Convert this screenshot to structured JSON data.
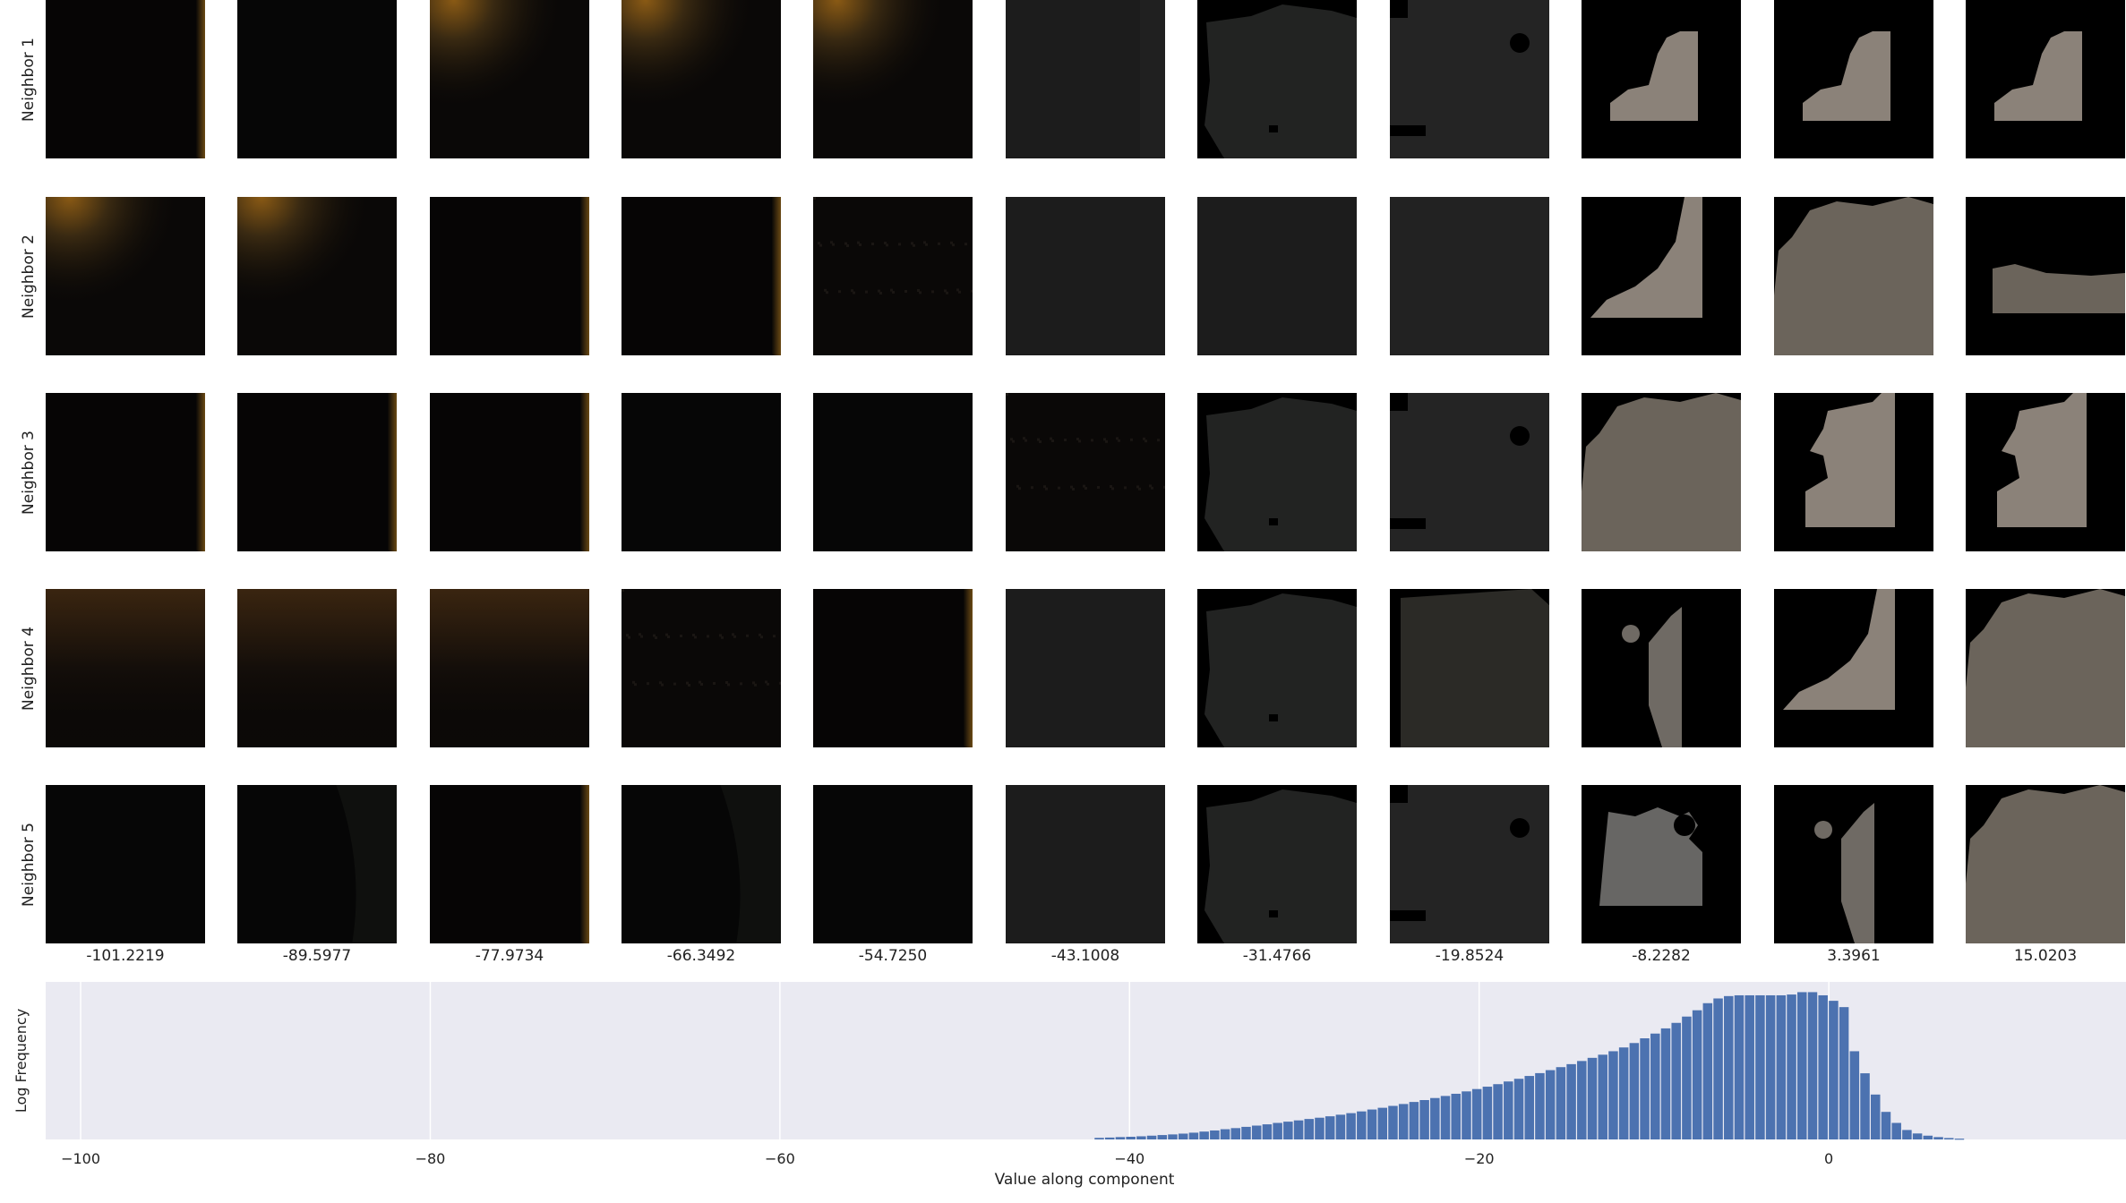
{
  "row_labels": [
    "Neighbor 1",
    "Neighbor 2",
    "Neighbor 3",
    "Neighbor 4",
    "Neighbor 5"
  ],
  "column_values": [
    "-101.2219",
    "-89.5977",
    "-77.9734",
    "-66.3492",
    "-54.7250",
    "-43.1008",
    "-31.4766",
    "-19.8524",
    "-8.2282",
    "3.3961",
    "15.0203"
  ],
  "tiles": [
    [
      "dark-edge",
      "dark",
      "amber-corner",
      "amber-corner",
      "amber-corner",
      "charcoal-edge",
      "blob-dark",
      "blob-dark-holes",
      "mask-corner",
      "mask-corner",
      "mask-corner"
    ],
    [
      "amber-corner",
      "amber-corner",
      "dark-edge",
      "dark-edge",
      "dark-speckle",
      "charcoal",
      "charcoal",
      "charcoal-light",
      "mask-diagonal",
      "mask-large",
      "mask-band"
    ],
    [
      "dark-edge",
      "dark-edge",
      "dark-edge",
      "dark",
      "dark",
      "dark-speckle",
      "blob-dark",
      "blob-dark-holes",
      "mask-large",
      "mask-notch",
      "mask-notch"
    ],
    [
      "brown-gradient",
      "brown-gradient",
      "brown-gradient",
      "dark-speckle",
      "dark-edge",
      "charcoal",
      "blob-dark",
      "blob-olive",
      "mask-arc",
      "mask-diagonal",
      "mask-large"
    ],
    [
      "dark",
      "dark-shadow",
      "dark-edge",
      "dark-shadow",
      "dark",
      "charcoal",
      "blob-dark",
      "blob-dark-holes",
      "mask-holes",
      "mask-arc",
      "mask-large"
    ]
  ],
  "colors": {
    "plot_background": "#eaeaf2",
    "bar": "#4c72b0",
    "grid": "#ffffff",
    "mask_light": "#8b8279",
    "mask_mid": "#6b645b",
    "tile_dark": "#050505"
  },
  "chart_data": {
    "type": "bar",
    "ylabel": "Log Frequency",
    "xlabel": "Value along component",
    "xlim": [
      -102,
      17
    ],
    "xticks": [
      -100,
      -80,
      -60,
      -40,
      -20,
      0
    ],
    "xtick_labels": [
      "−100",
      "−80",
      "−60",
      "−40",
      "−20",
      "0"
    ],
    "y_scale": "log",
    "grid": true,
    "bin_width": 0.6,
    "x": [
      -41.7,
      -41.1,
      -40.5,
      -39.9,
      -39.3,
      -38.7,
      -38.1,
      -37.5,
      -36.9,
      -36.3,
      -35.7,
      -35.1,
      -34.5,
      -33.9,
      -33.3,
      -32.7,
      -32.1,
      -31.5,
      -30.9,
      -30.3,
      -29.7,
      -29.1,
      -28.5,
      -27.9,
      -27.3,
      -26.7,
      -26.1,
      -25.5,
      -24.9,
      -24.3,
      -23.7,
      -23.1,
      -22.5,
      -21.9,
      -21.3,
      -20.7,
      -20.1,
      -19.5,
      -18.9,
      -18.3,
      -17.7,
      -17.1,
      -16.5,
      -15.9,
      -15.3,
      -14.7,
      -14.1,
      -13.5,
      -12.9,
      -12.3,
      -11.7,
      -11.1,
      -10.5,
      -9.9,
      -9.3,
      -8.7,
      -8.1,
      -7.5,
      -6.9,
      -6.3,
      -5.7,
      -5.1,
      -4.5,
      -3.9,
      -3.3,
      -2.7,
      -2.1,
      -1.5,
      -0.9,
      -0.3,
      0.3,
      0.9,
      1.5,
      2.1,
      2.7,
      3.3,
      3.9,
      4.5,
      5.1,
      5.7,
      6.3,
      6.9,
      7.5
    ],
    "values": [
      0.01,
      0.012,
      0.015,
      0.017,
      0.02,
      0.024,
      0.028,
      0.032,
      0.037,
      0.043,
      0.05,
      0.057,
      0.065,
      0.072,
      0.08,
      0.088,
      0.096,
      0.105,
      0.113,
      0.121,
      0.13,
      0.138,
      0.147,
      0.157,
      0.167,
      0.178,
      0.19,
      0.201,
      0.213,
      0.225,
      0.238,
      0.25,
      0.263,
      0.276,
      0.29,
      0.305,
      0.32,
      0.335,
      0.351,
      0.368,
      0.385,
      0.403,
      0.421,
      0.44,
      0.459,
      0.478,
      0.498,
      0.518,
      0.538,
      0.56,
      0.584,
      0.612,
      0.642,
      0.672,
      0.705,
      0.74,
      0.78,
      0.82,
      0.865,
      0.895,
      0.91,
      0.915,
      0.915,
      0.915,
      0.915,
      0.915,
      0.92,
      0.935,
      0.935,
      0.915,
      0.88,
      0.84,
      0.56,
      0.42,
      0.285,
      0.175,
      0.105,
      0.06,
      0.038,
      0.024,
      0.015,
      0.009,
      0.005
    ]
  }
}
